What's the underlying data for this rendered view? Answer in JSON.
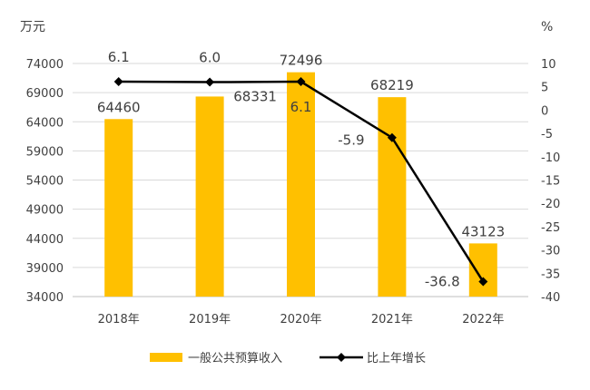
{
  "chart_data": {
    "type": "bar+line",
    "categories": [
      "2018年",
      "2019年",
      "2020年",
      "2021年",
      "2022年"
    ],
    "series": [
      {
        "name": "一般公共预算收入",
        "type": "bar",
        "axis": "left",
        "values": [
          64460,
          68331,
          72496,
          68219,
          43123
        ],
        "color": "#FFC000"
      },
      {
        "name": "比上年增长",
        "type": "line",
        "axis": "right",
        "values": [
          6.1,
          6.0,
          6.1,
          -5.9,
          -36.8
        ],
        "labels": [
          "6.1",
          "6.0",
          "6.1",
          "-5.9",
          "-36.8"
        ],
        "color": "#000000"
      }
    ],
    "left_axis": {
      "label": "万元",
      "range": [
        34000,
        74000
      ],
      "step": 5000,
      "ticks": [
        "34000",
        "39000",
        "44000",
        "49000",
        "54000",
        "59000",
        "64000",
        "69000",
        "74000"
      ]
    },
    "right_axis": {
      "label": "%",
      "range": [
        -40,
        10
      ],
      "step": 5,
      "ticks": [
        "-40",
        "-35",
        "-30",
        "-25",
        "-20",
        "-15",
        "-10",
        "-5",
        "0",
        "5",
        "10"
      ]
    },
    "grid": true,
    "legend": "bottom"
  }
}
